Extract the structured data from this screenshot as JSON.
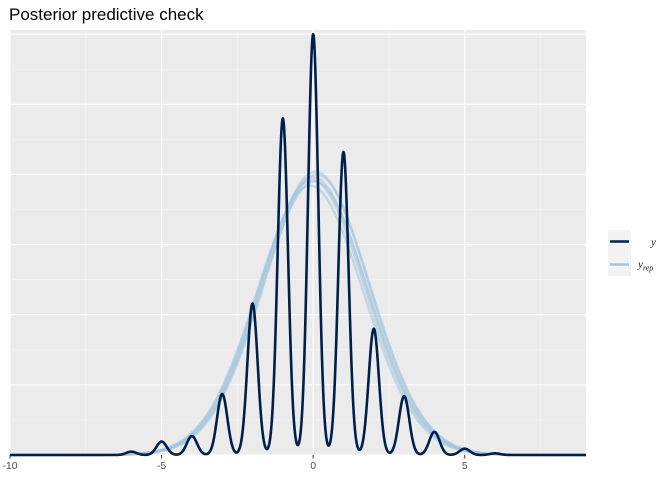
{
  "chart_data": {
    "type": "line",
    "title": "Posterior predictive check",
    "xlabel": "",
    "ylabel": "",
    "xlim": [
      -10,
      9
    ],
    "ylim": [
      0,
      1.01
    ],
    "x_ticks": [
      -10,
      -5,
      0,
      5
    ],
    "x_tick_labels": [
      "-10",
      "-5",
      "0",
      "5"
    ],
    "y_tick_labels_shown": false,
    "grid": true,
    "legend_position": "right",
    "legend": [
      {
        "key": "y",
        "label": "y",
        "sub": "",
        "color": "#011f4b"
      },
      {
        "key": "yrep",
        "label": "y",
        "sub": "rep",
        "color": "#a3c4dc"
      }
    ],
    "series": [
      {
        "name": "y",
        "color": "#011f4b",
        "kind": "observed density (multimodal, peaks at integers)",
        "peaks": [
          {
            "x": -6,
            "y": 0.008
          },
          {
            "x": -5,
            "y": 0.032
          },
          {
            "x": -4,
            "y": 0.045
          },
          {
            "x": -3,
            "y": 0.145
          },
          {
            "x": -2,
            "y": 0.36
          },
          {
            "x": -1,
            "y": 0.8
          },
          {
            "x": 0,
            "y": 1.0
          },
          {
            "x": 1,
            "y": 0.72
          },
          {
            "x": 2,
            "y": 0.3
          },
          {
            "x": 3,
            "y": 0.14
          },
          {
            "x": 4,
            "y": 0.055
          },
          {
            "x": 5,
            "y": 0.015
          },
          {
            "x": 6,
            "y": 0.004
          }
        ],
        "troughs": [
          {
            "x": -2.5,
            "y": 0.06
          },
          {
            "x": -1.5,
            "y": 0.08
          },
          {
            "x": -0.5,
            "y": 0.1
          },
          {
            "x": 0.5,
            "y": 0.08
          },
          {
            "x": 1.5,
            "y": 0.06
          },
          {
            "x": 2.5,
            "y": 0.03
          }
        ]
      },
      {
        "name": "y_rep",
        "color": "#a3c4dc",
        "kind": "replicated densities (smooth, unimodal)",
        "center": 0,
        "sd": 1.75,
        "peak_y": 0.66
      }
    ]
  }
}
